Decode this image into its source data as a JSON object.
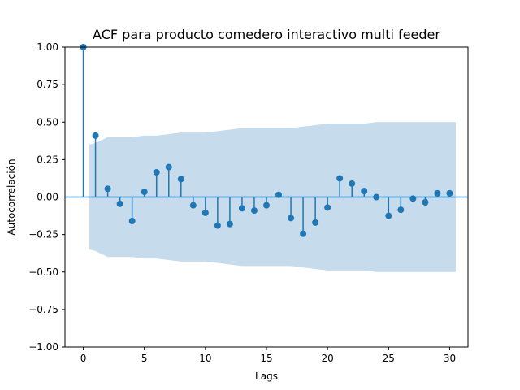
{
  "chart_data": {
    "type": "stem",
    "title": "ACF para producto comedero interactivo multi feeder",
    "xlabel": "Lags",
    "ylabel": "Autocorrelación",
    "xlim": [
      -1.5,
      31.5
    ],
    "ylim": [
      -1.0,
      1.0
    ],
    "xticks": [
      0,
      5,
      10,
      15,
      20,
      25,
      30
    ],
    "yticks": [
      -1.0,
      -0.75,
      -0.5,
      -0.25,
      0.0,
      0.25,
      0.5,
      0.75,
      1.0
    ],
    "xtick_labels": [
      "0",
      "5",
      "10",
      "15",
      "20",
      "25",
      "30"
    ],
    "ytick_labels": [
      "−1.00",
      "−0.75",
      "−0.50",
      "−0.25",
      "0.00",
      "0.25",
      "0.50",
      "0.75",
      "1.00"
    ],
    "grid": false,
    "colors": {
      "stem": "#1f77b4",
      "confidence_band": "#c6dbec"
    },
    "series": [
      {
        "x": [
          0,
          1,
          2,
          3,
          4,
          5,
          6,
          7,
          8,
          9,
          10,
          11,
          12,
          13,
          14,
          15,
          16,
          17,
          18,
          19,
          20,
          21,
          22,
          23,
          24,
          25,
          26,
          27,
          28,
          29,
          30
        ],
        "values": [
          1.0,
          0.41,
          0.055,
          -0.045,
          -0.16,
          0.035,
          0.165,
          0.2,
          0.12,
          -0.055,
          -0.105,
          -0.19,
          -0.18,
          -0.075,
          -0.09,
          -0.055,
          0.015,
          -0.14,
          -0.245,
          -0.17,
          -0.07,
          0.125,
          0.09,
          0.04,
          0.0,
          -0.125,
          -0.085,
          -0.01,
          -0.035,
          0.025,
          0.025
        ]
      }
    ],
    "confidence_band": {
      "x": [
        0.5,
        1,
        2,
        3,
        4,
        5,
        6,
        7,
        8,
        9,
        10,
        11,
        12,
        13,
        14,
        15,
        16,
        17,
        18,
        19,
        20,
        21,
        22,
        23,
        24,
        25,
        26,
        27,
        28,
        29,
        30,
        30.5
      ],
      "upper": [
        0.35,
        0.36,
        0.4,
        0.4,
        0.4,
        0.41,
        0.41,
        0.42,
        0.43,
        0.43,
        0.43,
        0.44,
        0.45,
        0.46,
        0.46,
        0.46,
        0.46,
        0.46,
        0.47,
        0.48,
        0.49,
        0.49,
        0.49,
        0.49,
        0.5,
        0.5,
        0.5,
        0.5,
        0.5,
        0.5,
        0.5,
        0.5
      ]
    }
  }
}
